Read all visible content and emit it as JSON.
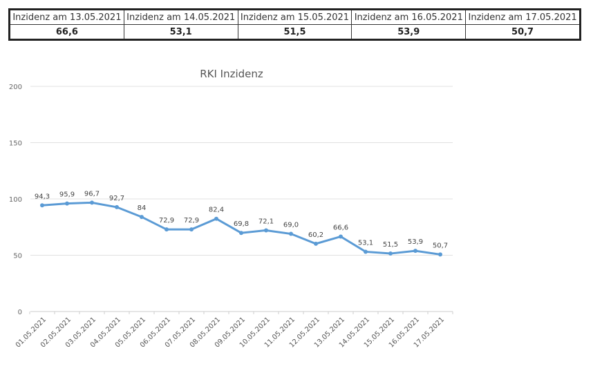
{
  "table": {
    "headers": [
      "Inzidenz am 13.05.2021",
      "Inzidenz am 14.05.2021",
      "Inzidenz am 15.05.2021",
      "Inzidenz am 16.05.2021",
      "Inzidenz am 17.05.2021"
    ],
    "values": [
      "66,6",
      "53,1",
      "51,5",
      "53,9",
      "50,7"
    ]
  },
  "chart_data": {
    "type": "line",
    "title": "RKI Inzidenz",
    "xlabel": "",
    "ylabel": "",
    "ylim": [
      0,
      200
    ],
    "yticks": [
      0,
      50,
      100,
      150,
      200
    ],
    "grid": true,
    "color": "#5b9bd5",
    "categories": [
      "01.05.2021",
      "02.05.2021",
      "03.05.2021",
      "04.05.2021",
      "05.05.2021",
      "06.05.2021",
      "07.05.2021",
      "08.05.2021",
      "09.05.2021",
      "10.05.2021",
      "11.05.2021",
      "12.05.2021",
      "13.05.2021",
      "14.05.2021",
      "15.05.2021",
      "16.05.2021",
      "17.05.2021"
    ],
    "values": [
      94.3,
      95.9,
      96.7,
      92.7,
      84,
      72.9,
      72.9,
      82.4,
      69.8,
      72.1,
      69.0,
      60.2,
      66.6,
      53.1,
      51.5,
      53.9,
      50.7
    ],
    "labels": [
      "94,3",
      "95,9",
      "96,7",
      "92,7",
      "84",
      "72,9",
      "72,9",
      "82,4",
      "69,8",
      "72,1",
      "69,0",
      "60,2",
      "66,6",
      "53,1",
      "51,5",
      "53,9",
      "50,7"
    ]
  }
}
